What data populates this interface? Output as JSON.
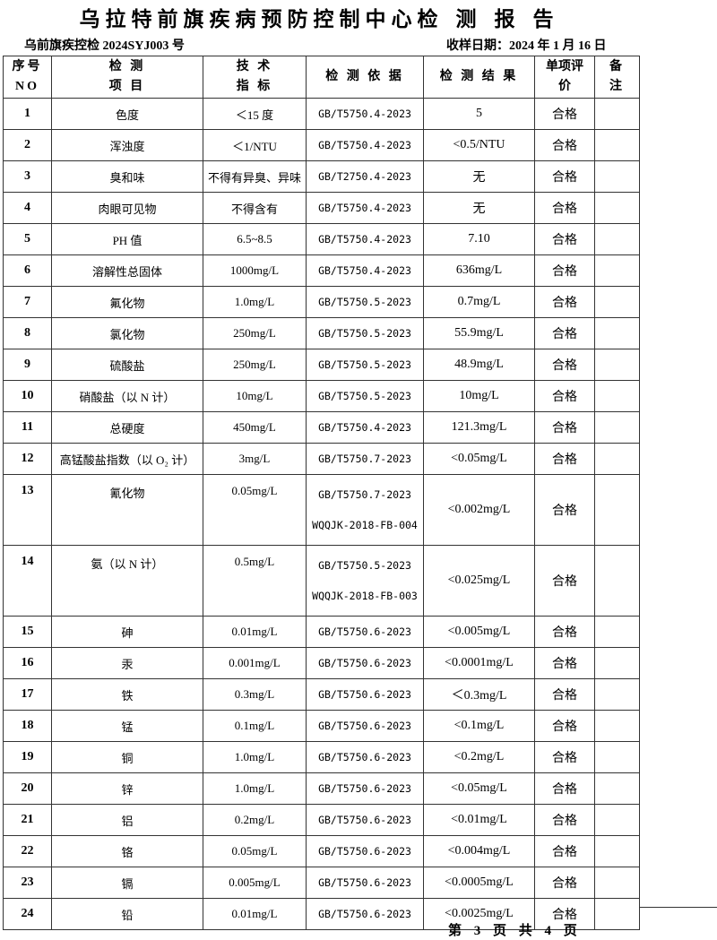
{
  "title": "乌拉特前旗疾病预防控制中心检 测 报 告",
  "report_no": "乌前旗疾控检 2024SYJ003 号",
  "sample_date": "收样日期：2024 年 1 月 16 日",
  "headers": {
    "no": "序号",
    "no2": "NO",
    "item": "检 测",
    "item2": "项 目",
    "std": "技 术",
    "std2": "指 标",
    "basis": "检 测 依 据",
    "result": "检 测 结 果",
    "eval": "单项评",
    "eval2": "价",
    "note": "备",
    "note2": "注"
  },
  "rows": [
    {
      "no": "1",
      "item": "色度",
      "limit": "＜15 度",
      "basis": "GB/T5750.4-2023",
      "result": "5",
      "eval": "合格"
    },
    {
      "no": "2",
      "item": "浑浊度",
      "limit": "＜1/NTU",
      "basis": "GB/T5750.4-2023",
      "result": "<0.5/NTU",
      "eval": "合格"
    },
    {
      "no": "3",
      "item": "臭和味",
      "limit": "不得有异臭、异味",
      "basis": "GB/T2750.4-2023",
      "result": "无",
      "eval": "合格"
    },
    {
      "no": "4",
      "item": "肉眼可见物",
      "limit": "不得含有",
      "basis": "GB/T5750.4-2023",
      "result": "无",
      "eval": "合格"
    },
    {
      "no": "5",
      "item": "PH 值",
      "limit": "6.5~8.5",
      "basis": "GB/T5750.4-2023",
      "result": "7.10",
      "eval": "合格"
    },
    {
      "no": "6",
      "item": "溶解性总固体",
      "limit": "1000mg/L",
      "basis": "GB/T5750.4-2023",
      "result": "636mg/L",
      "eval": "合格"
    },
    {
      "no": "7",
      "item": "氟化物",
      "limit": "1.0mg/L",
      "basis": "GB/T5750.5-2023",
      "result": "0.7mg/L",
      "eval": "合格"
    },
    {
      "no": "8",
      "item": "氯化物",
      "limit": "250mg/L",
      "basis": "GB/T5750.5-2023",
      "result": "55.9mg/L",
      "eval": "合格"
    },
    {
      "no": "9",
      "item": "硫酸盐",
      "limit": "250mg/L",
      "basis": "GB/T5750.5-2023",
      "result": "48.9mg/L",
      "eval": "合格"
    },
    {
      "no": "10",
      "item": "硝酸盐（以 N 计）",
      "limit": "10mg/L",
      "basis": "GB/T5750.5-2023",
      "result": "10mg/L",
      "eval": "合格"
    },
    {
      "no": "11",
      "item": "总硬度",
      "limit": "450mg/L",
      "basis": "GB/T5750.4-2023",
      "result": "121.3mg/L",
      "eval": "合格"
    },
    {
      "no": "12",
      "item": "高锰酸盐指数（以 O₂ 计）",
      "limit": "3mg/L",
      "basis": "GB/T5750.7-2023",
      "result": "<0.05mg/L",
      "eval": "合格"
    },
    {
      "no": "13",
      "item": "氰化物",
      "limit": "0.05mg/L",
      "basis": "GB/T5750.7-2023",
      "basis2": "WQQJK-2018-FB-004",
      "result": "<0.002mg/L",
      "eval": "合格"
    },
    {
      "no": "14",
      "item": "氨（以 N 计）",
      "limit": "0.5mg/L",
      "basis": "GB/T5750.5-2023",
      "basis2": "WQQJK-2018-FB-003",
      "result": "<0.025mg/L",
      "eval": "合格"
    },
    {
      "no": "15",
      "item": "砷",
      "limit": "0.01mg/L",
      "basis": "GB/T5750.6-2023",
      "result": "<0.005mg/L",
      "eval": "合格"
    },
    {
      "no": "16",
      "item": "汞",
      "limit": "0.001mg/L",
      "basis": "GB/T5750.6-2023",
      "result": "<0.0001mg/L",
      "eval": "合格"
    },
    {
      "no": "17",
      "item": "铁",
      "limit": "0.3mg/L",
      "basis": "GB/T5750.6-2023",
      "result": "＜0.3mg/L",
      "eval": "合格"
    },
    {
      "no": "18",
      "item": "锰",
      "limit": "0.1mg/L",
      "basis": "GB/T5750.6-2023",
      "result": "<0.1mg/L",
      "eval": "合格"
    },
    {
      "no": "19",
      "item": "铜",
      "limit": "1.0mg/L",
      "basis": "GB/T5750.6-2023",
      "result": "<0.2mg/L",
      "eval": "合格"
    },
    {
      "no": "20",
      "item": "锌",
      "limit": "1.0mg/L",
      "basis": "GB/T5750.6-2023",
      "result": "<0.05mg/L",
      "eval": "合格"
    },
    {
      "no": "21",
      "item": "铝",
      "limit": "0.2mg/L",
      "basis": "GB/T5750.6-2023",
      "result": "<0.01mg/L",
      "eval": "合格"
    },
    {
      "no": "22",
      "item": "铬",
      "limit": "0.05mg/L",
      "basis": "GB/T5750.6-2023",
      "result": "<0.004mg/L",
      "eval": "合格"
    },
    {
      "no": "23",
      "item": "镉",
      "limit": "0.005mg/L",
      "basis": "GB/T5750.6-2023",
      "result": "<0.0005mg/L",
      "eval": "合格"
    },
    {
      "no": "24",
      "item": "铅",
      "limit": "0.01mg/L",
      "basis": "GB/T5750.6-2023",
      "result": "<0.0025mg/L",
      "eval": "合格"
    }
  ],
  "footer": "第 3 页 共 4 页"
}
